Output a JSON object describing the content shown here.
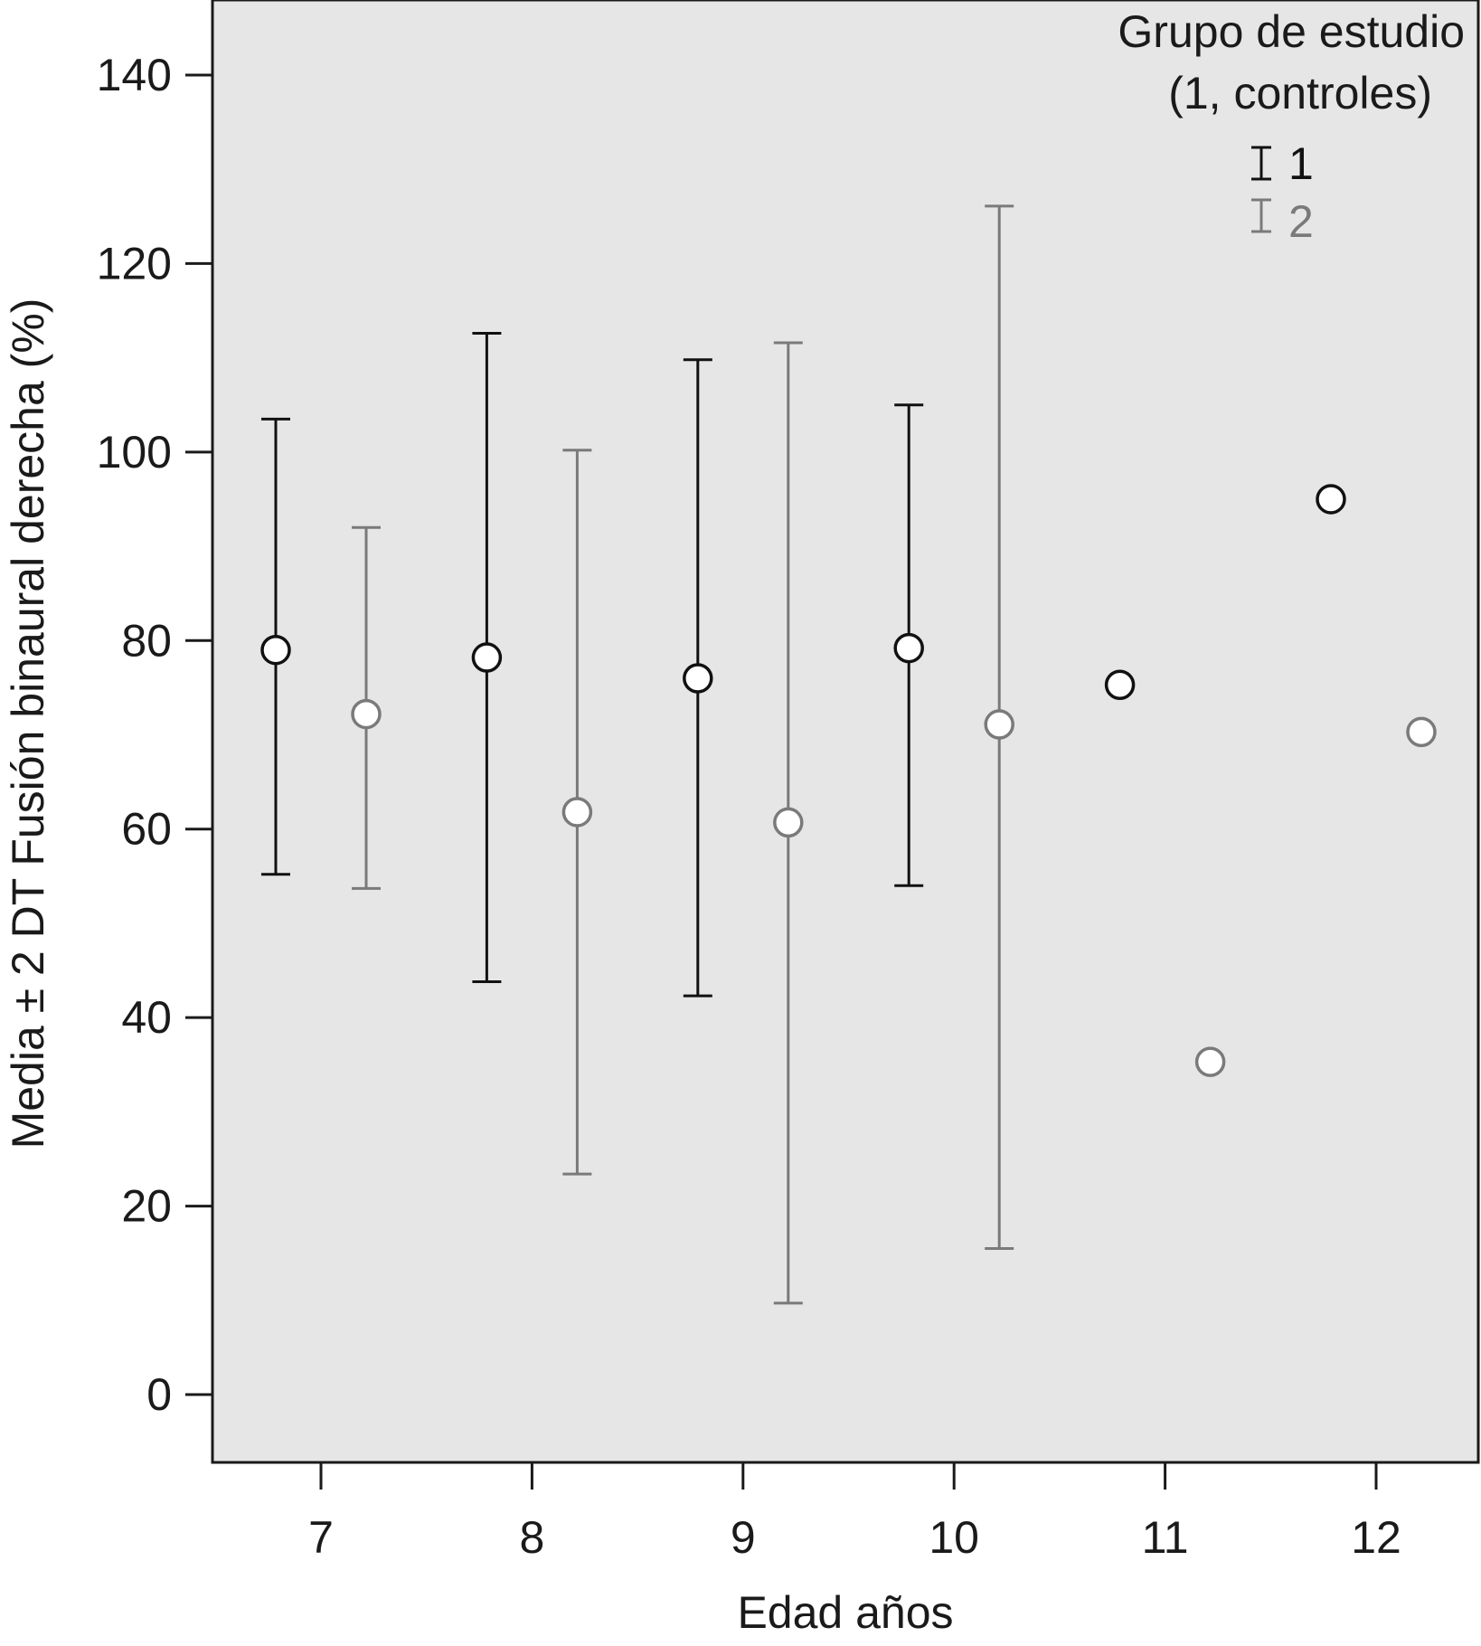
{
  "chart_data": {
    "type": "scatter",
    "subtype": "error-bar",
    "xlabel": "Edad años",
    "ylabel": "Media ± 2 DT Fusión binaural derecha (%)",
    "ylim": [
      -7,
      148
    ],
    "xlim": [
      6.5,
      12.5
    ],
    "y_ticks": [
      "0",
      "20",
      "40",
      "60",
      "80",
      "100",
      "120",
      "140"
    ],
    "x_ticks": [
      "7",
      "8",
      "9",
      "10",
      "11",
      "12"
    ],
    "grid": false,
    "background_color": "#e6e6e6",
    "legend": {
      "title_line1": "Grupo de estudio",
      "title_line2": "(1, controles)",
      "placement": "top-right",
      "entries": [
        "1",
        "2"
      ]
    },
    "series": [
      {
        "name": "1",
        "color": "#111111",
        "points": [
          {
            "x": 7,
            "mean": 79.0,
            "low": 55.2,
            "high": 103.5
          },
          {
            "x": 8,
            "mean": 78.2,
            "low": 43.8,
            "high": 112.6
          },
          {
            "x": 9,
            "mean": 76.0,
            "low": 42.3,
            "high": 109.8
          },
          {
            "x": 10,
            "mean": 79.2,
            "low": 54.0,
            "high": 105.0
          },
          {
            "x": 11,
            "mean": 75.3,
            "low": null,
            "high": null
          },
          {
            "x": 12,
            "mean": 95.0,
            "low": null,
            "high": null
          }
        ]
      },
      {
        "name": "2",
        "color": "#7a7a7a",
        "points": [
          {
            "x": 7,
            "mean": 72.2,
            "low": 53.7,
            "high": 92.0
          },
          {
            "x": 8,
            "mean": 61.8,
            "low": 23.4,
            "high": 100.2
          },
          {
            "x": 9,
            "mean": 60.7,
            "low": 9.7,
            "high": 111.6
          },
          {
            "x": 10,
            "mean": 71.1,
            "low": 15.5,
            "high": 126.1
          },
          {
            "x": 11,
            "mean": 35.3,
            "low": null,
            "high": null
          },
          {
            "x": 12,
            "mean": 70.3,
            "low": null,
            "high": null
          }
        ]
      }
    ]
  }
}
